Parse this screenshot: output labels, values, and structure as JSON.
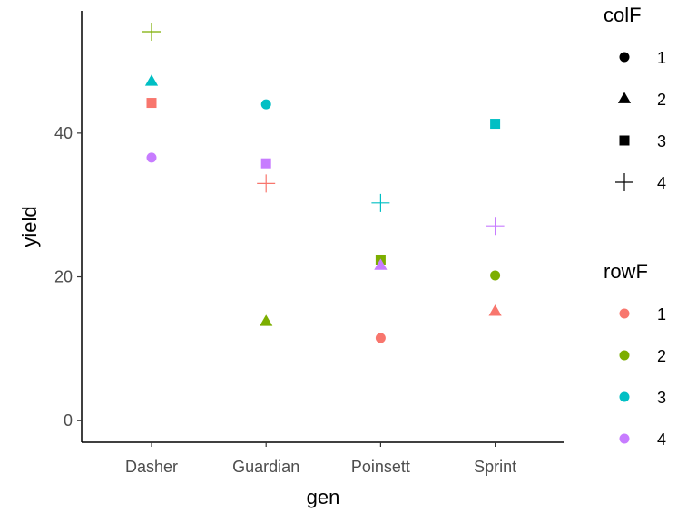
{
  "chart_data": {
    "type": "scatter",
    "title": "",
    "xlabel": "gen",
    "ylabel": "yield",
    "categories": [
      "Dasher",
      "Guardian",
      "Poinsett",
      "Sprint"
    ],
    "ylim": [
      -3,
      57
    ],
    "yticks": [
      0,
      20,
      40
    ],
    "grid": false,
    "points": [
      {
        "gen": "Dasher",
        "yield": 54.1,
        "colF": "4",
        "rowF": "2"
      },
      {
        "gen": "Dasher",
        "yield": 47.2,
        "colF": "2",
        "rowF": "3"
      },
      {
        "gen": "Dasher",
        "yield": 44.2,
        "colF": "3",
        "rowF": "1"
      },
      {
        "gen": "Dasher",
        "yield": 36.6,
        "colF": "1",
        "rowF": "4"
      },
      {
        "gen": "Guardian",
        "yield": 44.0,
        "colF": "1",
        "rowF": "3"
      },
      {
        "gen": "Guardian",
        "yield": 35.8,
        "colF": "3",
        "rowF": "4"
      },
      {
        "gen": "Guardian",
        "yield": 33.0,
        "colF": "4",
        "rowF": "1"
      },
      {
        "gen": "Guardian",
        "yield": 13.8,
        "colF": "2",
        "rowF": "2"
      },
      {
        "gen": "Poinsett",
        "yield": 30.3,
        "colF": "4",
        "rowF": "3"
      },
      {
        "gen": "Poinsett",
        "yield": 22.4,
        "colF": "3",
        "rowF": "2"
      },
      {
        "gen": "Poinsett",
        "yield": 21.6,
        "colF": "2",
        "rowF": "4"
      },
      {
        "gen": "Poinsett",
        "yield": 11.5,
        "colF": "1",
        "rowF": "1"
      },
      {
        "gen": "Sprint",
        "yield": 41.3,
        "colF": "3",
        "rowF": "3"
      },
      {
        "gen": "Sprint",
        "yield": 27.1,
        "colF": "4",
        "rowF": "4"
      },
      {
        "gen": "Sprint",
        "yield": 20.2,
        "colF": "1",
        "rowF": "2"
      },
      {
        "gen": "Sprint",
        "yield": 15.2,
        "colF": "2",
        "rowF": "1"
      }
    ],
    "legend_placement": "right",
    "legends": [
      {
        "title": "colF",
        "encoding": "shape",
        "entries": [
          {
            "label": "1",
            "shape": "circle"
          },
          {
            "label": "2",
            "shape": "triangle"
          },
          {
            "label": "3",
            "shape": "square"
          },
          {
            "label": "4",
            "shape": "plus"
          }
        ]
      },
      {
        "title": "rowF",
        "encoding": "color",
        "entries": [
          {
            "label": "1",
            "color": "#F8766D"
          },
          {
            "label": "2",
            "color": "#7CAE00"
          },
          {
            "label": "3",
            "color": "#00BFC4"
          },
          {
            "label": "4",
            "color": "#C77CFF"
          }
        ]
      }
    ],
    "colors": {
      "axis": "#000000",
      "tick_text": "#4d4d4d",
      "legend_key": "#000000"
    }
  }
}
